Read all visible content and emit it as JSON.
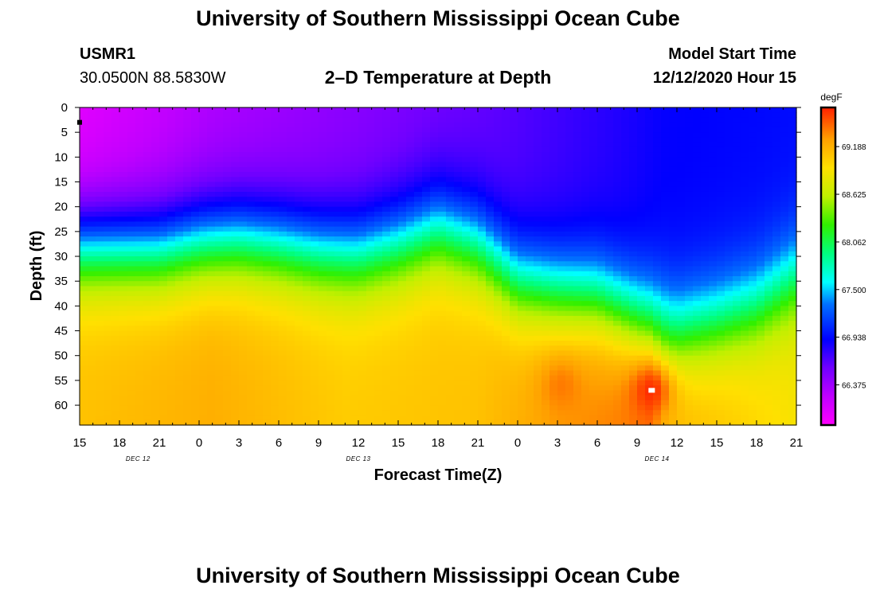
{
  "header": {
    "title_top": "University of Southern Mississippi Ocean Cube",
    "title_bottom": "University of Southern Mississippi Ocean Cube",
    "station_id": "USMR1",
    "coordinates": "30.0500N 88.5830W",
    "chart_title": "2–D Temperature at Depth",
    "model_start_label": "Model Start Time",
    "model_start_value": "12/12/2020 Hour 15"
  },
  "chart_data": {
    "type": "heatmap",
    "title": "2–D Temperature at Depth",
    "xlabel": "Forecast Time(Z)",
    "ylabel": "Depth (ft)",
    "x_hours_range": [
      0,
      54
    ],
    "x_ticks": [
      {
        "hour": 0,
        "label": "15"
      },
      {
        "hour": 3,
        "label": "18"
      },
      {
        "hour": 6,
        "label": "21"
      },
      {
        "hour": 9,
        "label": "0"
      },
      {
        "hour": 12,
        "label": "3"
      },
      {
        "hour": 15,
        "label": "6"
      },
      {
        "hour": 18,
        "label": "9"
      },
      {
        "hour": 21,
        "label": "12"
      },
      {
        "hour": 24,
        "label": "15"
      },
      {
        "hour": 27,
        "label": "18"
      },
      {
        "hour": 30,
        "label": "21"
      },
      {
        "hour": 33,
        "label": "0"
      },
      {
        "hour": 36,
        "label": "3"
      },
      {
        "hour": 39,
        "label": "6"
      },
      {
        "hour": 42,
        "label": "9"
      },
      {
        "hour": 45,
        "label": "12"
      },
      {
        "hour": 48,
        "label": "15"
      },
      {
        "hour": 51,
        "label": "18"
      },
      {
        "hour": 54,
        "label": "21"
      }
    ],
    "date_labels": [
      {
        "hour": 4.4,
        "label": "DEC 12"
      },
      {
        "hour": 21,
        "label": "DEC 13"
      },
      {
        "hour": 43.5,
        "label": "DEC 14"
      }
    ],
    "y_ticks": [
      0,
      5,
      10,
      15,
      20,
      25,
      30,
      35,
      40,
      45,
      50,
      55,
      60
    ],
    "ylim": [
      0,
      64
    ],
    "colorbar": {
      "unit": "degF",
      "vmin": 65.9,
      "vmax": 69.65,
      "ticks": [
        66.375,
        66.938,
        67.5,
        68.062,
        68.625,
        69.188
      ],
      "tick_labels": [
        "66.375",
        "66.938",
        "67.500",
        "68.062",
        "68.625",
        "69.188"
      ],
      "stops": [
        {
          "frac": 0.0,
          "color": "#ff00ff"
        },
        {
          "frac": 0.09,
          "color": "#c000ff"
        },
        {
          "frac": 0.18,
          "color": "#7000ff"
        },
        {
          "frac": 0.27,
          "color": "#0000ff"
        },
        {
          "frac": 0.38,
          "color": "#0070ff"
        },
        {
          "frac": 0.45,
          "color": "#00ffff"
        },
        {
          "frac": 0.54,
          "color": "#00ff80"
        },
        {
          "frac": 0.63,
          "color": "#30f000"
        },
        {
          "frac": 0.72,
          "color": "#c0f000"
        },
        {
          "frac": 0.81,
          "color": "#ffe000"
        },
        {
          "frac": 0.9,
          "color": "#ffa000"
        },
        {
          "frac": 1.0,
          "color": "#ff2000"
        }
      ]
    },
    "thermocline_depth_ft": {
      "hours": [
        0,
        6,
        9,
        12,
        15,
        18,
        21,
        24,
        27,
        30,
        33,
        36,
        39,
        42,
        45,
        48,
        51,
        54
      ],
      "values": [
        28,
        28.5,
        27,
        26.5,
        27.5,
        29,
        29.5,
        27.5,
        24.5,
        27.5,
        35,
        37,
        38,
        42,
        45,
        43,
        40,
        34
      ]
    },
    "surface_temp_degF": {
      "hours": [
        0,
        10,
        20,
        30,
        40,
        44,
        54
      ],
      "values": [
        66.05,
        66.3,
        66.45,
        66.6,
        66.8,
        66.9,
        66.95
      ]
    },
    "deep_temp_degF": {
      "hours": [
        0,
        10,
        20,
        30,
        36,
        43,
        44,
        48,
        54
      ],
      "values": [
        69.1,
        69.2,
        69.05,
        69.1,
        69.3,
        69.45,
        69.2,
        69.1,
        68.9
      ]
    },
    "hotspots": [
      {
        "hour": 43.1,
        "depth": 57,
        "temp": 69.65
      },
      {
        "hour": 36.3,
        "depth": 56,
        "temp": 69.4
      }
    ],
    "max_marker": {
      "hour": 43.1,
      "depth": 57
    },
    "min_marker": {
      "hour": 0,
      "depth": 3
    }
  }
}
